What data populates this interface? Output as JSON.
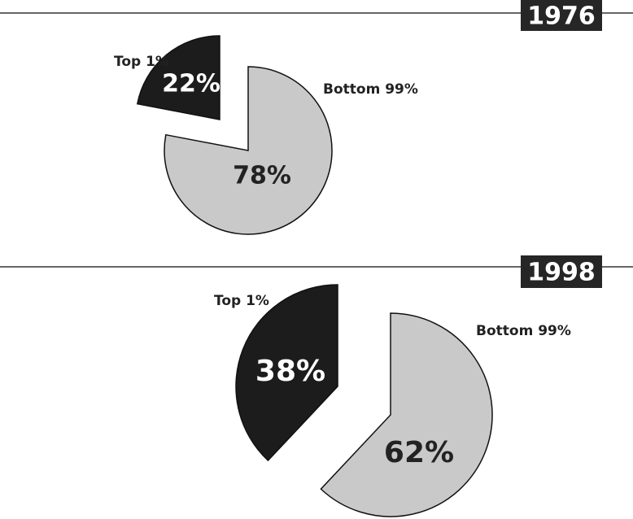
{
  "chart_data": [
    {
      "type": "pie",
      "title": "1976",
      "categories": [
        "Top 1%",
        "Bottom 99%"
      ],
      "values": [
        22,
        78
      ],
      "value_labels": [
        "22%",
        "78%"
      ],
      "colors": [
        "#1c1c1c",
        "#c9c9c9"
      ]
    },
    {
      "type": "pie",
      "title": "1998",
      "categories": [
        "Top 1%",
        "Bottom 99%"
      ],
      "values": [
        38,
        62
      ],
      "value_labels": [
        "38%",
        "62%"
      ],
      "colors": [
        "#1c1c1c",
        "#c9c9c9"
      ]
    }
  ]
}
